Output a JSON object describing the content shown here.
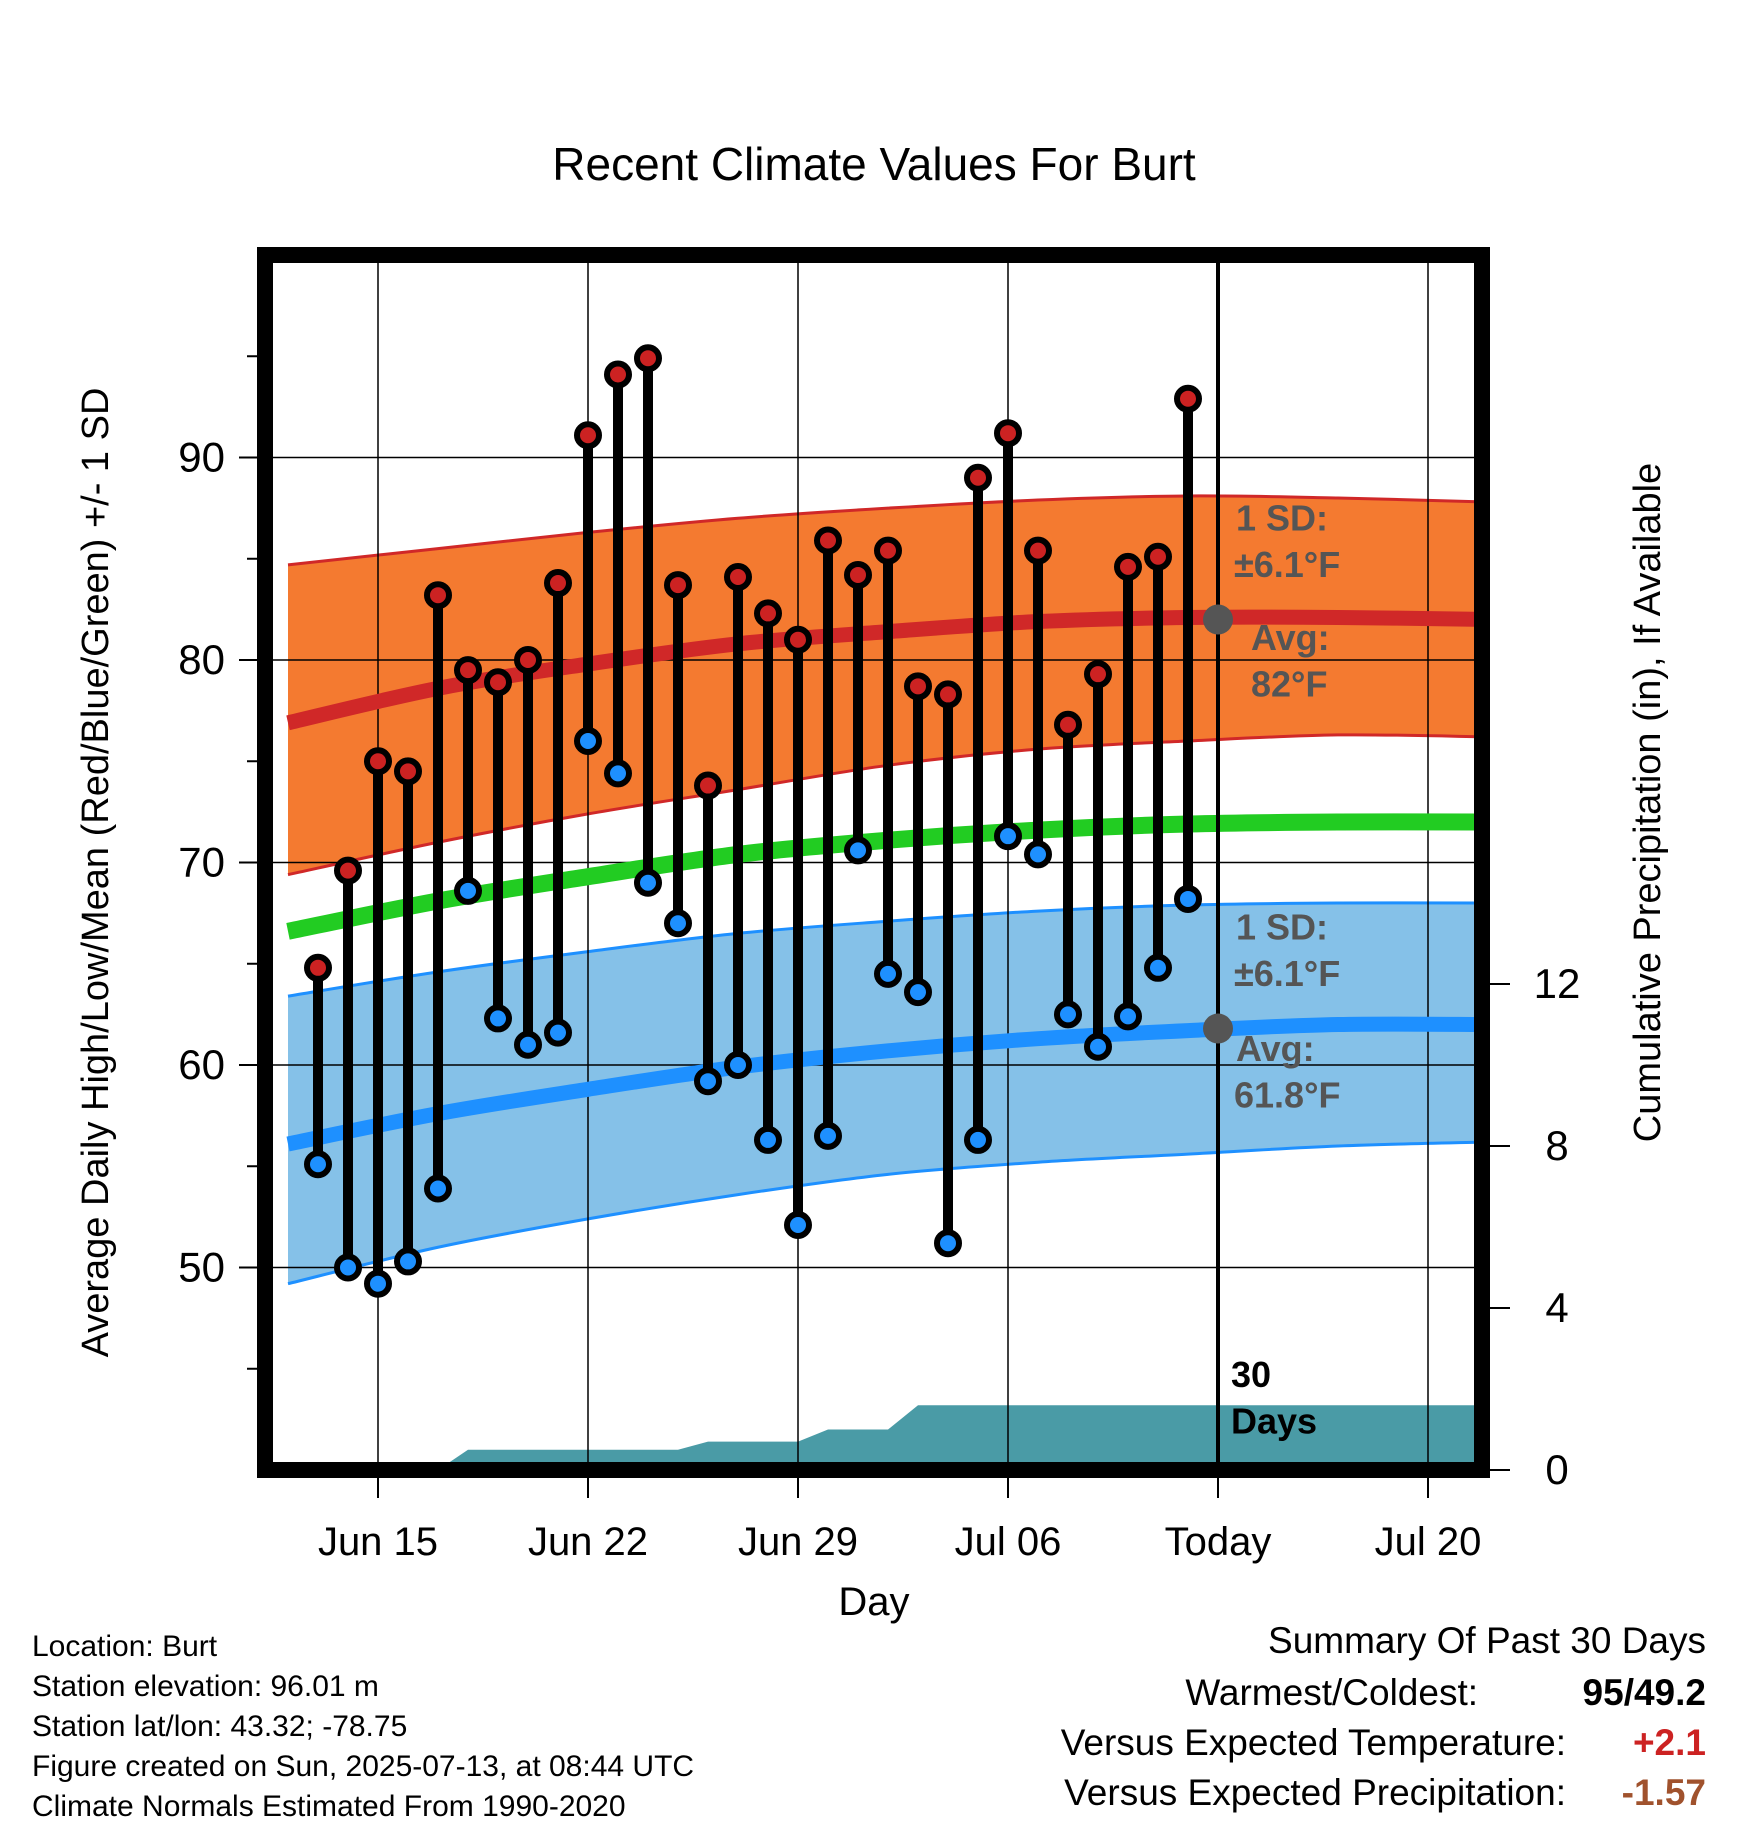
{
  "chart_data": {
    "type": "line",
    "title": "Recent Climate Values For Burt",
    "xlabel": "Day",
    "ylabel": "Average Daily High/Low/Mean (Red/Blue/Green) +/- 1 SD",
    "y2label": "Cumulative Precipitation (in), If Available",
    "ylim": [
      40,
      100
    ],
    "y2lim": [
      0,
      30
    ],
    "x_range": [
      "2025-06-12",
      "2025-07-22"
    ],
    "yticks": [
      50,
      60,
      70,
      80,
      90
    ],
    "y2ticks": [
      0,
      4,
      8,
      12
    ],
    "xticks": [
      {
        "date": "2025-06-15",
        "label": "Jun 15"
      },
      {
        "date": "2025-06-22",
        "label": "Jun 22"
      },
      {
        "date": "2025-06-29",
        "label": "Jun 29"
      },
      {
        "date": "2025-07-06",
        "label": "Jul 06"
      },
      {
        "date": "2025-07-13",
        "label": "Today"
      },
      {
        "date": "2025-07-20",
        "label": "Jul 20"
      }
    ],
    "grid": true,
    "today": "2025-07-13",
    "today_label": "Today",
    "days": [
      "2025-06-13",
      "2025-06-14",
      "2025-06-15",
      "2025-06-16",
      "2025-06-17",
      "2025-06-18",
      "2025-06-19",
      "2025-06-20",
      "2025-06-21",
      "2025-06-22",
      "2025-06-23",
      "2025-06-24",
      "2025-06-25",
      "2025-06-26",
      "2025-06-27",
      "2025-06-28",
      "2025-06-29",
      "2025-06-30",
      "2025-07-01",
      "2025-07-02",
      "2025-07-03",
      "2025-07-04",
      "2025-07-05",
      "2025-07-06",
      "2025-07-07",
      "2025-07-08",
      "2025-07-09",
      "2025-07-10",
      "2025-07-11",
      "2025-07-12"
    ],
    "highs": [
      64.8,
      69.6,
      75.0,
      74.5,
      83.2,
      79.5,
      78.9,
      80.0,
      83.8,
      91.1,
      94.1,
      94.9,
      83.7,
      73.8,
      84.1,
      82.3,
      81.0,
      85.9,
      84.2,
      85.4,
      78.7,
      78.3,
      89.0,
      91.2,
      85.4,
      76.8,
      79.3,
      84.6,
      85.1,
      92.9
    ],
    "lows": [
      55.1,
      50.0,
      49.2,
      50.3,
      53.9,
      68.6,
      62.3,
      61.0,
      61.6,
      76.0,
      74.4,
      69.0,
      67.0,
      59.2,
      60.0,
      56.3,
      52.1,
      56.5,
      70.6,
      64.5,
      63.6,
      51.2,
      56.3,
      71.3,
      70.4,
      62.5,
      60.9,
      62.4,
      64.8,
      68.2
    ],
    "normals": {
      "dates": [
        "2025-06-12",
        "2025-06-17",
        "2025-06-22",
        "2025-06-27",
        "2025-07-02",
        "2025-07-07",
        "2025-07-12",
        "2025-07-17",
        "2025-07-22"
      ],
      "high_avg": [
        76.9,
        78.6,
        79.8,
        80.8,
        81.4,
        81.9,
        82.1,
        82.1,
        82.0
      ],
      "high_upper": [
        84.7,
        85.5,
        86.3,
        87.0,
        87.5,
        87.9,
        88.1,
        88.0,
        87.8
      ],
      "high_lower": [
        69.4,
        71.0,
        72.4,
        73.6,
        74.8,
        75.6,
        76.0,
        76.3,
        76.2
      ],
      "mean": [
        66.6,
        68.1,
        69.3,
        70.4,
        71.1,
        71.6,
        71.9,
        72.0,
        72.0
      ],
      "low_avg": [
        56.1,
        57.6,
        58.8,
        59.9,
        60.7,
        61.3,
        61.7,
        62.0,
        62.0
      ],
      "low_upper": [
        63.4,
        64.6,
        65.6,
        66.5,
        67.1,
        67.6,
        67.9,
        68.0,
        68.0
      ],
      "low_lower": [
        49.2,
        51.0,
        52.4,
        53.6,
        54.6,
        55.2,
        55.6,
        56.0,
        56.2
      ]
    },
    "precip_cumulative": {
      "dates": [
        "2025-06-12",
        "2025-06-16",
        "2025-06-17",
        "2025-06-18",
        "2025-06-25",
        "2025-06-26",
        "2025-06-29",
        "2025-06-30",
        "2025-07-02",
        "2025-07-03",
        "2025-07-22"
      ],
      "values": [
        0,
        0,
        0,
        0.5,
        0.5,
        0.7,
        0.7,
        1.0,
        1.0,
        1.6,
        1.6
      ]
    },
    "annotations": {
      "high_sd_label": "1 SD:",
      "high_sd_value": "±6.1°F",
      "high_avg_label": "Avg:",
      "high_avg_value": "82°F",
      "high_avg_today": 82,
      "low_sd_label": "1 SD:",
      "low_sd_value": "±6.1°F",
      "low_avg_label": "Avg:",
      "low_avg_value": "61.8°F",
      "low_avg_today": 61.8,
      "days_label_1": "30",
      "days_label_2": "Days"
    },
    "colors": {
      "high_band": "#f47a30",
      "high_line": "#d02828",
      "low_band": "#85c1e8",
      "low_line": "#1e90ff",
      "mean_line": "#22cc22",
      "precip": "#4a9ba6",
      "high_dot": "#cc2222",
      "low_dot": "#1e90ff",
      "avg_marker": "#555555",
      "annotation": "#555555"
    }
  },
  "footer": {
    "location": "Location: Burt",
    "elevation": "Station elevation: 96.01 m",
    "latlon": "Station lat/lon: 43.32; -78.75",
    "created": "Figure created on Sun, 2025-07-13, at 08:44 UTC",
    "normals": "Climate Normals Estimated From 1990-2020"
  },
  "summary": {
    "title": "Summary Of Past 30 Days",
    "warmest_label": "Warmest/Coldest:",
    "warmest_value_high": "95",
    "warmest_value_low": "/49.2",
    "temp_label": "Versus Expected Temperature:",
    "temp_value": "+2.1",
    "temp_color": "#cc2222",
    "precip_label": "Versus Expected Precipitation:",
    "precip_value": "-1.57",
    "precip_color": "#a0522d"
  }
}
